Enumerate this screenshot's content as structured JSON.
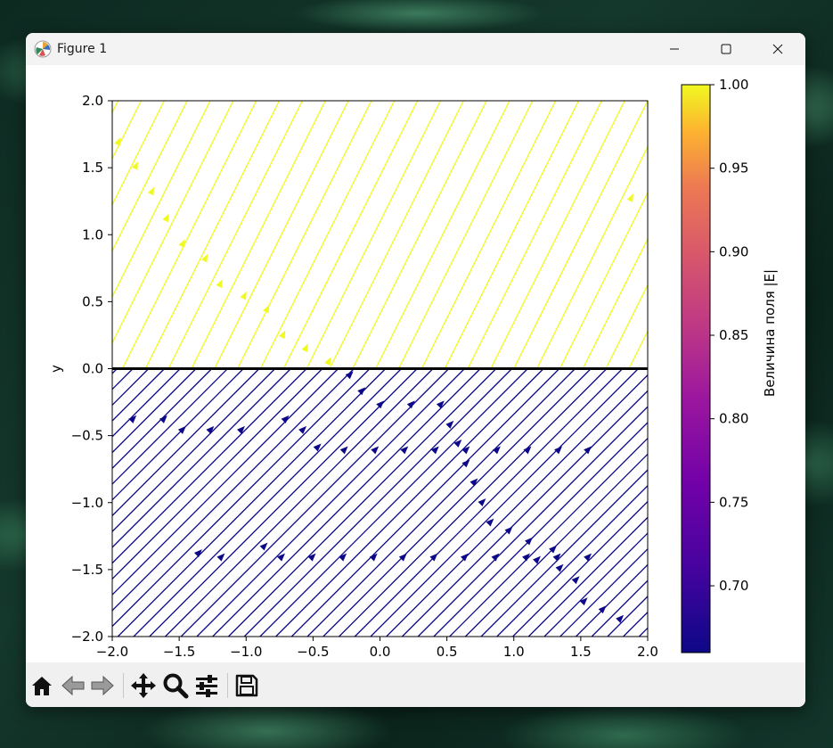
{
  "window": {
    "title": "Figure 1",
    "controls": {
      "minimize": "minimize-icon",
      "maximize": "maximize-icon",
      "close": "close-icon"
    }
  },
  "toolbar": {
    "buttons": [
      "home-icon",
      "back-icon",
      "forward-icon",
      "pan-icon",
      "zoom-icon",
      "configure-subplots-icon",
      "save-icon"
    ]
  },
  "colors": {
    "upper_stream": "#f0f921",
    "lower_stream": "#0d0887",
    "boundary": "#000000"
  },
  "chart_data": {
    "type": "streamplot",
    "xlabel": "",
    "ylabel": "y",
    "xlim": [
      -2.0,
      2.0
    ],
    "ylim": [
      -2.0,
      2.0
    ],
    "x_ticks": [
      "−2.0",
      "−1.5",
      "−1.0",
      "−0.5",
      "0.0",
      "0.5",
      "1.0",
      "1.5",
      "2.0"
    ],
    "y_ticks": [
      "−2.0",
      "−1.5",
      "−1.0",
      "−0.5",
      "0.0",
      "0.5",
      "1.0",
      "1.5",
      "2.0"
    ],
    "regions": [
      {
        "region": "y > 0",
        "direction": [
          0.5,
          1.0
        ],
        "magnitude": 1.0,
        "color": "#f0f921"
      },
      {
        "region": "y < 0",
        "direction": [
          1.0,
          1.0
        ],
        "magnitude": 0.66,
        "color": "#0d0887"
      }
    ],
    "boundary_line": {
      "y": 0.0
    },
    "colorbar": {
      "label": "Величина поля |E|",
      "colormap": "plasma",
      "min": 0.66,
      "max": 1.0,
      "ticks": [
        "0.70",
        "0.75",
        "0.80",
        "0.85",
        "0.90",
        "0.95",
        "1.00"
      ],
      "tick_values": [
        0.7,
        0.75,
        0.8,
        0.85,
        0.9,
        0.95,
        1.0
      ]
    }
  }
}
